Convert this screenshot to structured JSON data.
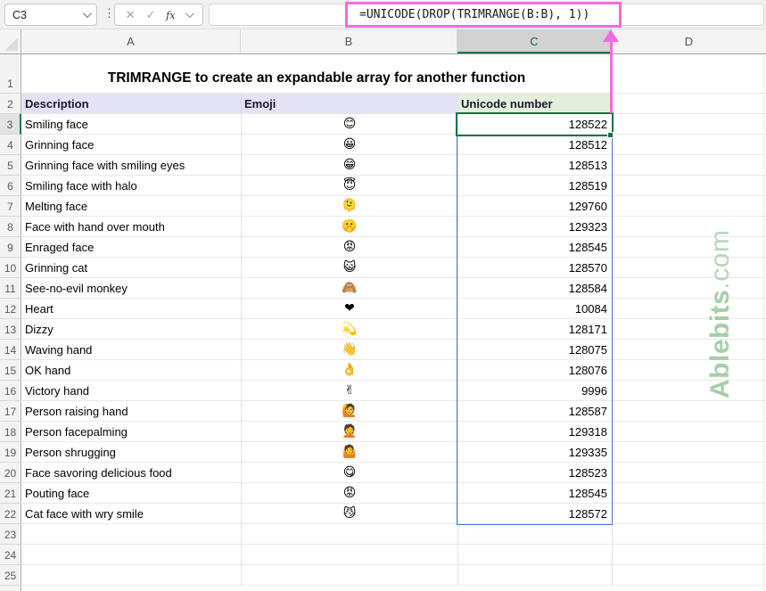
{
  "name_box": {
    "value": "C3"
  },
  "formula_bar": {
    "formula": "=UNICODE(DROP(TRIMRANGE(B:B), 1))",
    "cancel_label": "✕",
    "enter_label": "✓",
    "fx_label": "f",
    "fx_sub": "x",
    "menu_dots": "⋮"
  },
  "column_headers": [
    "A",
    "B",
    "C",
    "D"
  ],
  "selected_column": "C",
  "title_row": {
    "row_number": "1",
    "text": "TRIMRANGE to create an expandable array for another function"
  },
  "header_row": {
    "row_number": "2",
    "description": "Description",
    "emoji": "Emoji",
    "unicode": "Unicode number"
  },
  "rows": [
    {
      "row": "3",
      "description": "Smiling face",
      "emoji": "😊",
      "value": "128522"
    },
    {
      "row": "4",
      "description": "Grinning face",
      "emoji": "😀",
      "value": "128512"
    },
    {
      "row": "5",
      "description": "Grinning face with smiling eyes",
      "emoji": "😁",
      "value": "128513"
    },
    {
      "row": "6",
      "description": "Smiling face with halo",
      "emoji": "😇",
      "value": "128519"
    },
    {
      "row": "7",
      "description": "Melting face",
      "emoji": "🫠",
      "value": "129760"
    },
    {
      "row": "8",
      "description": "Face with hand over mouth",
      "emoji": "🤫",
      "value": "129323"
    },
    {
      "row": "9",
      "description": "Enraged face",
      "emoji": "😡",
      "value": "128545"
    },
    {
      "row": "10",
      "description": "Grinning cat",
      "emoji": "😺",
      "value": "128570"
    },
    {
      "row": "11",
      "description": "See-no-evil monkey",
      "emoji": "🙈",
      "value": "128584"
    },
    {
      "row": "12",
      "description": "Heart",
      "emoji": "❤",
      "value": "10084"
    },
    {
      "row": "13",
      "description": "Dizzy",
      "emoji": "💫",
      "value": "128171"
    },
    {
      "row": "14",
      "description": "Waving hand",
      "emoji": "👋",
      "value": "128075"
    },
    {
      "row": "15",
      "description": "OK hand",
      "emoji": "👌",
      "value": "128076"
    },
    {
      "row": "16",
      "description": "Victory hand",
      "emoji": "✌",
      "value": "9996"
    },
    {
      "row": "17",
      "description": "Person raising hand",
      "emoji": "🙋",
      "value": "128587"
    },
    {
      "row": "18",
      "description": "Person facepalming",
      "emoji": "🤦",
      "value": "129318"
    },
    {
      "row": "19",
      "description": "Person shrugging",
      "emoji": "🤷",
      "value": "129335"
    },
    {
      "row": "20",
      "description": "Face savoring delicious food",
      "emoji": "😋",
      "value": "128523"
    },
    {
      "row": "21",
      "description": "Pouting face",
      "emoji": "😡",
      "value": "128545"
    },
    {
      "row": "22",
      "description": "Cat face with wry smile",
      "emoji": "😼",
      "value": "128572"
    }
  ],
  "empty_row_numbers": [
    "23",
    "24",
    "25"
  ],
  "selected_cell": {
    "reference": "C3",
    "value": "128522"
  },
  "watermark": {
    "bold_text": "Ablebits",
    "suffix_text": ".com"
  },
  "colors": {
    "annotation_pink": "#f16be0",
    "selection_green": "#177245",
    "spill_blue": "#4472c4",
    "header_lavender": "#e4e2f5",
    "header_green": "#e3efda",
    "watermark_green": "#9ccaa0"
  }
}
